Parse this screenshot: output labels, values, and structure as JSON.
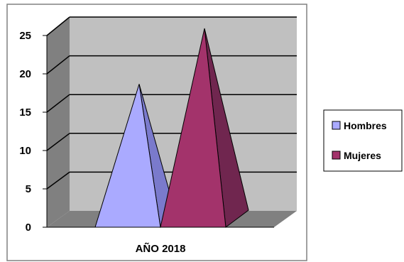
{
  "chart_data": {
    "type": "bar",
    "subtype": "3d-pyramid",
    "title": "",
    "xlabel": "",
    "ylabel": "",
    "categories": [
      "AÑO 2018"
    ],
    "series": [
      {
        "name": "Hombres",
        "values": [
          18
        ],
        "color": "#aaaaff",
        "side_color": "#7a7acc"
      },
      {
        "name": "Mujeres",
        "values": [
          25
        ],
        "color": "#a3336b",
        "side_color": "#70264f"
      }
    ],
    "ylim": [
      0,
      25
    ],
    "yticks": [
      "0",
      "5",
      "10",
      "15",
      "20",
      "25"
    ],
    "grid": true,
    "legend_position": "right",
    "colors": {
      "wall": "#c0c0c0",
      "side_wall": "#808080",
      "floor": "#808080",
      "gridline": "#000000",
      "border": "#808080"
    }
  }
}
